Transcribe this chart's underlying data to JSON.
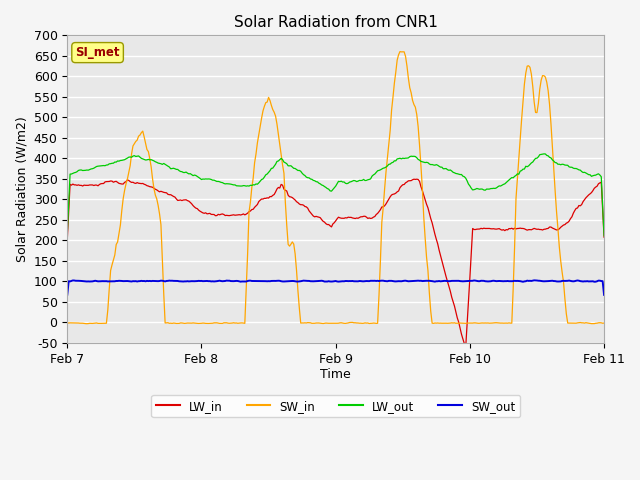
{
  "title": "Solar Radiation from CNR1",
  "xlabel": "Time",
  "ylabel": "Solar Radiation (W/m2)",
  "ylim": [
    -50,
    700
  ],
  "xlim": [
    0,
    96
  ],
  "xtick_positions": [
    0,
    24,
    48,
    72,
    96
  ],
  "xtick_labels": [
    "Feb 7",
    "Feb 8",
    "Feb 9",
    "Feb 10",
    "Feb 11"
  ],
  "ytick_positions": [
    -50,
    0,
    50,
    100,
    150,
    200,
    250,
    300,
    350,
    400,
    450,
    500,
    550,
    600,
    650,
    700
  ],
  "plot_bg_color": "#e8e8e8",
  "fig_bg_color": "#f5f5f5",
  "grid_color": "#ffffff",
  "title_fontsize": 11,
  "axis_label_fontsize": 9,
  "tick_fontsize": 9,
  "legend_labels": [
    "LW_in",
    "SW_in",
    "LW_out",
    "SW_out"
  ],
  "legend_colors": [
    "#dd0000",
    "#ffa500",
    "#00cc00",
    "#0000dd"
  ],
  "si_met_label": "SI_met",
  "si_met_fg": "#990000",
  "si_met_bg": "#ffff88",
  "si_met_border": "#999900"
}
